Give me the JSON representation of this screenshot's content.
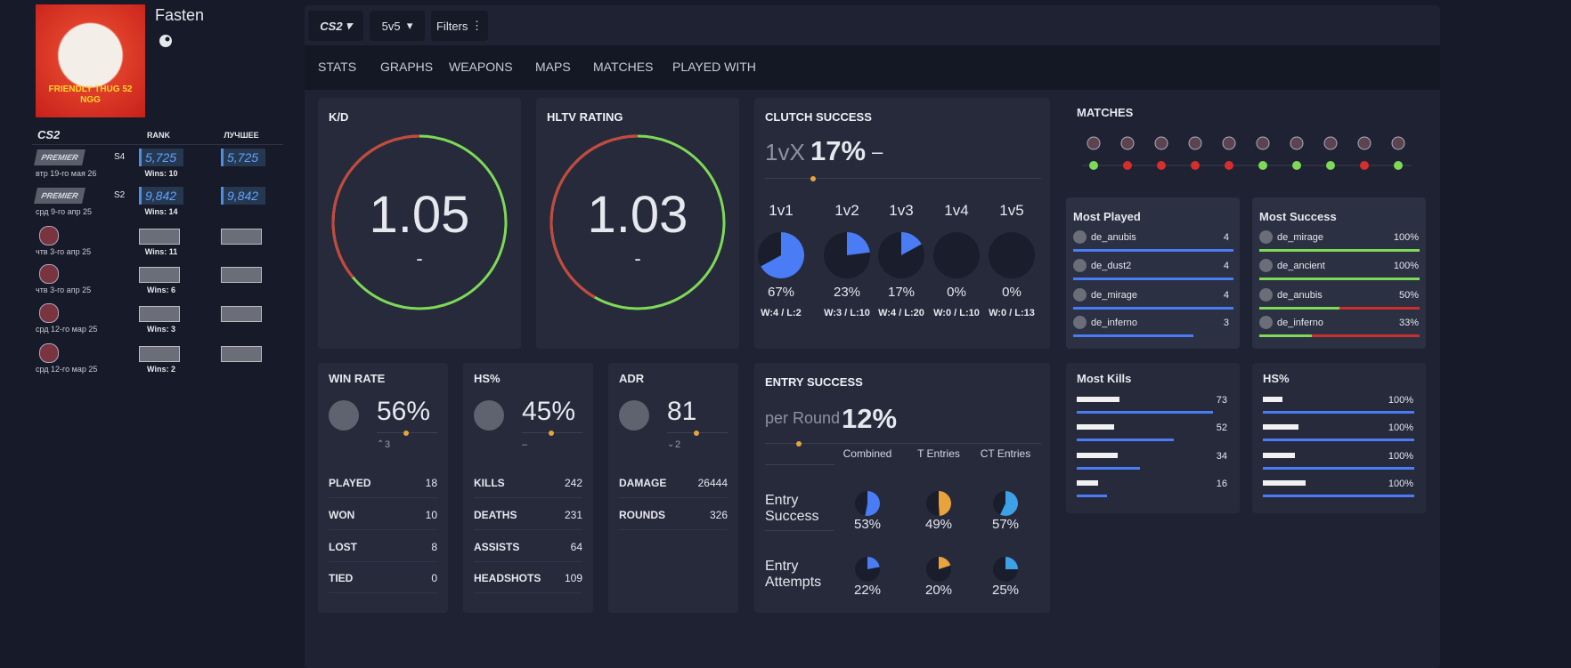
{
  "profile": {
    "name": "Fasten",
    "avatar_caption": [
      "FRIENDLY THUG 52",
      "NGG"
    ]
  },
  "ranks": {
    "headers": {
      "game": "CS2",
      "rank": "RANK",
      "best": "ЛУЧШЕЕ"
    },
    "rows": [
      {
        "badge": "PREMIER",
        "season": "S4",
        "date": "втр 19-го мая 26",
        "rank": "5,725",
        "best": "5,725",
        "wins": "Wins: 10"
      },
      {
        "badge": "PREMIER",
        "season": "S2",
        "date": "срд 9-го апр 25",
        "rank": "9,842",
        "best": "9,842",
        "wins": "Wins: 14"
      },
      {
        "date": "чтв 3-го апр 25",
        "wins": "Wins: 11"
      },
      {
        "date": "чтв 3-го апр 25",
        "wins": "Wins: 6"
      },
      {
        "date": "срд 12-го мар 25",
        "wins": "Wins: 3"
      },
      {
        "date": "срд 12-го мар 25",
        "wins": "Wins: 2"
      }
    ]
  },
  "toolbar": {
    "game": "CS2",
    "mode": "5v5",
    "filters": "Filters"
  },
  "tabs": [
    "STATS",
    "GRAPHS",
    "WEAPONS",
    "MAPS",
    "MATCHES",
    "PLAYED WITH"
  ],
  "kd": {
    "title": "K/D",
    "value": "1.05",
    "change": "-"
  },
  "hltv": {
    "title": "HLTV RATING",
    "value": "1.03",
    "change": "-"
  },
  "clutch": {
    "title": "CLUTCH SUCCESS",
    "prefix": "1vX",
    "value": "17%",
    "change": "–",
    "color": "#4a7cf5",
    "items": [
      {
        "label": "1v1",
        "value": 67,
        "value_label": "67%",
        "record": "W:4 / L:2"
      },
      {
        "label": "1v2",
        "value": 23,
        "value_label": "23%",
        "record": "W:3 / L:10"
      },
      {
        "label": "1v3",
        "value": 17,
        "value_label": "17%",
        "record": "W:4 / L:20"
      },
      {
        "label": "1v4",
        "value": 0,
        "value_label": "0%",
        "record": "W:0 / L:10"
      },
      {
        "label": "1v5",
        "value": 0,
        "value_label": "0%",
        "record": "W:0 / L:13"
      }
    ]
  },
  "matches": {
    "title": "MATCHES",
    "dot_colors": [
      "#7ed957",
      "#d62d2d",
      "#d62d2d",
      "#d62d2d",
      "#d62d2d",
      "#7ed957",
      "#7ed957",
      "#7ed957",
      "#d62d2d",
      "#7ed957"
    ]
  },
  "most_played": {
    "title": "Most Played",
    "rows": [
      {
        "map": "de_anubis",
        "value": 4
      },
      {
        "map": "de_dust2",
        "value": 4
      },
      {
        "map": "de_mirage",
        "value": 4
      },
      {
        "map": "de_inferno",
        "value": 3
      }
    ]
  },
  "most_success": {
    "title": "Most Success",
    "rows": [
      {
        "map": "de_mirage",
        "value": 100,
        "value_label": "100%"
      },
      {
        "map": "de_ancient",
        "value": 100,
        "value_label": "100%"
      },
      {
        "map": "de_anubis",
        "value": 50,
        "value_label": "50%"
      },
      {
        "map": "de_inferno",
        "value": 33,
        "value_label": "33%"
      }
    ]
  },
  "win_rate": {
    "title": "WIN RATE",
    "value": "56%",
    "change": "3",
    "stats": [
      {
        "label": "PLAYED",
        "value": 18
      },
      {
        "label": "WON",
        "value": 10
      },
      {
        "label": "LOST",
        "value": 8
      },
      {
        "label": "TIED",
        "value": 0
      }
    ]
  },
  "hs": {
    "title": "HS%",
    "value": "45%",
    "change": "–",
    "stats": [
      {
        "label": "KILLS",
        "value": 242
      },
      {
        "label": "DEATHS",
        "value": 231
      },
      {
        "label": "ASSISTS",
        "value": 64
      },
      {
        "label": "HEADSHOTS",
        "value": 109
      }
    ]
  },
  "adr": {
    "title": "ADR",
    "value": "81",
    "change": "2",
    "stats": [
      {
        "label": "DAMAGE",
        "value": 26444
      },
      {
        "label": "ROUNDS",
        "value": 326
      }
    ]
  },
  "entry": {
    "title": "ENTRY SUCCESS",
    "prefix": "per Round",
    "value": "12%",
    "columns": [
      "Combined",
      "T Entries",
      "CT Entries"
    ],
    "colors": [
      "#4a7cf5",
      "#e8a33d",
      "#3ea0e6"
    ],
    "rows": [
      {
        "label": "Entry Success",
        "values": [
          53,
          49,
          57
        ],
        "value_labels": [
          "53%",
          "49%",
          "57%"
        ]
      },
      {
        "label": "Entry Attempts",
        "values": [
          22,
          20,
          25
        ],
        "value_labels": [
          "22%",
          "20%",
          "25%"
        ]
      }
    ]
  },
  "most_kills": {
    "title": "Most Kills",
    "values": [
      73,
      52,
      34,
      16
    ]
  },
  "weapon_hs": {
    "title": "HS%",
    "values": [
      100,
      100,
      100,
      100
    ],
    "value_labels": [
      "100%",
      "100%",
      "100%",
      "100%"
    ]
  }
}
